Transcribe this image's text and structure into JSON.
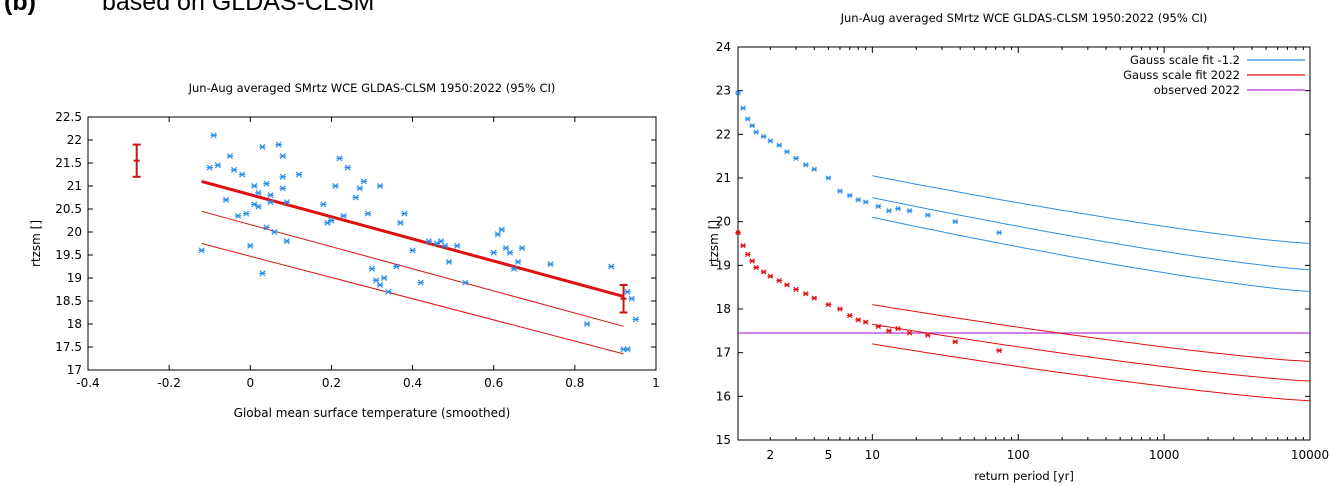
{
  "figure": {
    "panel_label": "(b)",
    "heading": "based on GLDAS-CLSM"
  },
  "colors": {
    "blue": "#2f8fe6",
    "red": "#e01010",
    "dark_red": "#c81414",
    "magenta": "#b633d6"
  },
  "chart_data": [
    {
      "type": "scatter",
      "title": "Jun-Aug averaged  SMrtz WCE GLDAS-CLSM 1950:2022 (95% CI)",
      "xlabel": "Global mean surface temperature (smoothed)",
      "ylabel": "rtzsm []",
      "xlim": [
        -0.4,
        1
      ],
      "ylim": [
        17,
        22.5
      ],
      "x_ticks": [
        -0.4,
        -0.2,
        0,
        0.2,
        0.4,
        0.6,
        0.8,
        1
      ],
      "x_tick_labels": [
        "-0.4",
        "-0.2",
        "0",
        "0.2",
        "0.4",
        "0.6",
        "0.8",
        "1"
      ],
      "y_ticks": [
        17,
        17.5,
        18,
        18.5,
        19,
        19.5,
        20,
        20.5,
        21,
        21.5,
        22,
        22.5
      ],
      "y_tick_labels": [
        "17",
        "17.5",
        "18",
        "18.5",
        "19",
        "19.5",
        "20",
        "20.5",
        "21",
        "21.5",
        "22",
        "22.5"
      ],
      "points": [
        [
          -0.12,
          19.6
        ],
        [
          -0.1,
          21.4
        ],
        [
          -0.09,
          22.1
        ],
        [
          -0.08,
          21.45
        ],
        [
          -0.06,
          20.7
        ],
        [
          -0.05,
          21.65
        ],
        [
          -0.04,
          21.35
        ],
        [
          -0.03,
          20.35
        ],
        [
          -0.02,
          21.25
        ],
        [
          -0.01,
          20.4
        ],
        [
          0.0,
          19.7
        ],
        [
          0.01,
          20.6
        ],
        [
          0.01,
          21.0
        ],
        [
          0.02,
          20.85
        ],
        [
          0.02,
          20.55
        ],
        [
          0.03,
          21.85
        ],
        [
          0.03,
          19.1
        ],
        [
          0.04,
          21.05
        ],
        [
          0.04,
          20.1
        ],
        [
          0.05,
          20.65
        ],
        [
          0.05,
          20.8
        ],
        [
          0.06,
          20.0
        ],
        [
          0.07,
          21.9
        ],
        [
          0.08,
          21.65
        ],
        [
          0.08,
          20.95
        ],
        [
          0.08,
          21.2
        ],
        [
          0.09,
          20.65
        ],
        [
          0.09,
          19.8
        ],
        [
          0.12,
          21.25
        ],
        [
          0.18,
          20.6
        ],
        [
          0.19,
          20.2
        ],
        [
          0.2,
          20.25
        ],
        [
          0.21,
          21.0
        ],
        [
          0.22,
          21.6
        ],
        [
          0.23,
          20.35
        ],
        [
          0.24,
          21.4
        ],
        [
          0.26,
          20.75
        ],
        [
          0.27,
          20.95
        ],
        [
          0.28,
          21.1
        ],
        [
          0.29,
          20.4
        ],
        [
          0.3,
          19.2
        ],
        [
          0.31,
          18.95
        ],
        [
          0.32,
          21.0
        ],
        [
          0.32,
          18.85
        ],
        [
          0.33,
          19.0
        ],
        [
          0.34,
          18.7
        ],
        [
          0.36,
          19.25
        ],
        [
          0.37,
          20.2
        ],
        [
          0.38,
          20.4
        ],
        [
          0.4,
          19.6
        ],
        [
          0.42,
          18.9
        ],
        [
          0.44,
          19.8
        ],
        [
          0.46,
          19.75
        ],
        [
          0.47,
          19.8
        ],
        [
          0.48,
          19.7
        ],
        [
          0.49,
          19.35
        ],
        [
          0.51,
          19.7
        ],
        [
          0.53,
          18.9
        ],
        [
          0.6,
          19.55
        ],
        [
          0.61,
          19.95
        ],
        [
          0.62,
          20.05
        ],
        [
          0.63,
          19.65
        ],
        [
          0.64,
          19.55
        ],
        [
          0.65,
          19.2
        ],
        [
          0.66,
          19.35
        ],
        [
          0.67,
          19.65
        ],
        [
          0.74,
          19.3
        ],
        [
          0.83,
          18.0
        ],
        [
          0.89,
          19.25
        ],
        [
          0.93,
          18.7
        ],
        [
          0.94,
          18.55
        ],
        [
          0.95,
          18.1
        ],
        [
          0.92,
          17.45
        ],
        [
          0.93,
          17.45
        ]
      ],
      "fit_line": {
        "x": [
          -0.12,
          0.92
        ],
        "y": [
          21.1,
          18.6
        ]
      },
      "band_upper": {
        "x": [
          -0.12,
          0.92
        ],
        "y": [
          20.45,
          17.95
        ]
      },
      "band_lower": {
        "x": [
          -0.12,
          0.92
        ],
        "y": [
          19.75,
          17.35
        ]
      },
      "error_bars": [
        {
          "x": -0.28,
          "y": 21.55,
          "low": 21.2,
          "high": 21.9
        },
        {
          "x": 0.92,
          "y": 18.55,
          "low": 18.25,
          "high": 18.85
        }
      ]
    },
    {
      "type": "scatter",
      "title": "Jun-Aug averaged  SMrtz WCE GLDAS-CLSM 1950:2022 (95% CI)",
      "xlabel": "return period [yr]",
      "ylabel": "rtzsm []",
      "x_scale": "log",
      "xlim": [
        1.2,
        10000
      ],
      "ylim": [
        15,
        24
      ],
      "x_tick_values": [
        2,
        5,
        10,
        100,
        1000,
        10000
      ],
      "x_tick_labels": [
        "2",
        "5",
        "10",
        "100",
        "1000",
        "10000"
      ],
      "y_ticks": [
        15,
        16,
        17,
        18,
        19,
        20,
        21,
        22,
        23,
        24
      ],
      "y_tick_labels": [
        "15",
        "16",
        "17",
        "18",
        "19",
        "20",
        "21",
        "22",
        "23",
        "24"
      ],
      "legend": [
        {
          "name": "Gauss scale fit -1.2",
          "color": "blue"
        },
        {
          "name": "Gauss scale fit 2022",
          "color": "red"
        },
        {
          "name": "observed 2022",
          "color": "magenta"
        }
      ],
      "legend_position": "top-right",
      "observed_2022": 17.45,
      "series": [
        {
          "name": "Gauss scale fit -1.2",
          "color": "blue",
          "points": [
            [
              1.2,
              22.95
            ],
            [
              1.3,
              22.6
            ],
            [
              1.4,
              22.35
            ],
            [
              1.5,
              22.2
            ],
            [
              1.6,
              22.05
            ],
            [
              1.8,
              21.95
            ],
            [
              2.0,
              21.85
            ],
            [
              2.3,
              21.75
            ],
            [
              2.6,
              21.6
            ],
            [
              3.0,
              21.45
            ],
            [
              3.5,
              21.3
            ],
            [
              4.0,
              21.2
            ],
            [
              5.0,
              21.0
            ],
            [
              6.0,
              20.7
            ],
            [
              7.0,
              20.6
            ],
            [
              8.0,
              20.5
            ],
            [
              9.0,
              20.45
            ],
            [
              11.0,
              20.35
            ],
            [
              13.0,
              20.25
            ],
            [
              15.0,
              20.3
            ],
            [
              18.0,
              20.25
            ],
            [
              24.0,
              20.15
            ],
            [
              37.0,
              20.0
            ],
            [
              74.0,
              19.75
            ]
          ],
          "fit_central": {
            "x": [
              10,
              10000
            ],
            "y": [
              20.55,
              18.9
            ]
          },
          "fit_upper": {
            "x": [
              10,
              10000
            ],
            "y": [
              21.05,
              19.5
            ]
          },
          "fit_lower": {
            "x": [
              10,
              10000
            ],
            "y": [
              20.1,
              18.4
            ]
          }
        },
        {
          "name": "Gauss scale fit 2022",
          "color": "red",
          "points": [
            [
              1.2,
              19.75
            ],
            [
              1.3,
              19.45
            ],
            [
              1.4,
              19.25
            ],
            [
              1.5,
              19.1
            ],
            [
              1.6,
              18.95
            ],
            [
              1.8,
              18.85
            ],
            [
              2.0,
              18.75
            ],
            [
              2.3,
              18.65
            ],
            [
              2.6,
              18.55
            ],
            [
              3.0,
              18.45
            ],
            [
              3.5,
              18.35
            ],
            [
              4.0,
              18.25
            ],
            [
              5.0,
              18.1
            ],
            [
              6.0,
              18.0
            ],
            [
              7.0,
              17.85
            ],
            [
              8.0,
              17.75
            ],
            [
              9.0,
              17.7
            ],
            [
              11.0,
              17.6
            ],
            [
              13.0,
              17.5
            ],
            [
              15.0,
              17.55
            ],
            [
              18.0,
              17.45
            ],
            [
              24.0,
              17.4
            ],
            [
              37.0,
              17.25
            ],
            [
              74.0,
              17.05
            ]
          ],
          "fit_central": {
            "x": [
              10,
              10000
            ],
            "y": [
              17.65,
              16.35
            ]
          },
          "fit_upper": {
            "x": [
              10,
              10000
            ],
            "y": [
              18.1,
              16.8
            ]
          },
          "fit_lower": {
            "x": [
              10,
              10000
            ],
            "y": [
              17.2,
              15.9
            ]
          }
        }
      ]
    }
  ]
}
